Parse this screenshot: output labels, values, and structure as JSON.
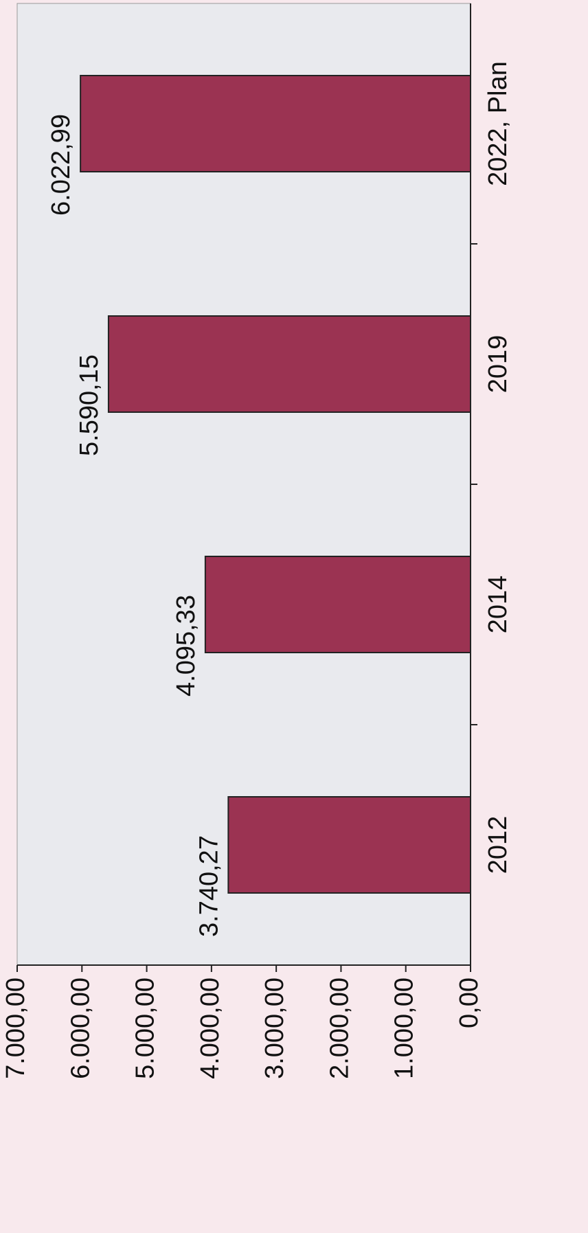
{
  "chart_data": {
    "type": "bar",
    "categories": [
      "2012",
      "2014",
      "2019",
      "2022, Plan"
    ],
    "values": [
      3740.27,
      4095.33,
      5590.15,
      6022.99
    ],
    "value_labels": [
      "3.740,27",
      "4.095,33",
      "5.590,15",
      "6.022,99"
    ],
    "color": "#9b3352",
    "ylim": [
      0,
      7000
    ],
    "yticks": [
      {
        "value": 0,
        "label": "0,00"
      },
      {
        "value": 1000,
        "label": "1.000,00"
      },
      {
        "value": 2000,
        "label": "2.000,00"
      },
      {
        "value": 3000,
        "label": "3.000,00"
      },
      {
        "value": 4000,
        "label": "4.000,00"
      },
      {
        "value": 5000,
        "label": "5.000,00"
      },
      {
        "value": 6000,
        "label": "6.000,00"
      },
      {
        "value": 7000,
        "label": "7.000,00"
      }
    ],
    "grid": false
  }
}
